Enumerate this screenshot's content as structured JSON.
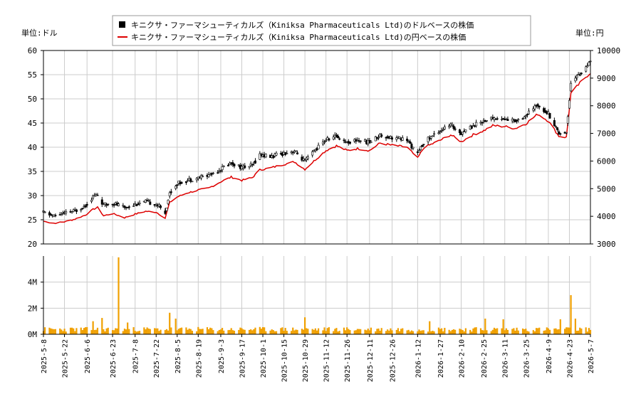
{
  "legend": {
    "items": [
      {
        "label": "キニクサ・ファーマシューティカルズ（Kiniksa Pharmaceuticals Ltd)のドルベースの株価",
        "color": "#000000",
        "kind": "box"
      },
      {
        "label": "キニクサ・ファーマシューティカルズ（Kiniksa Pharmaceuticals Ltd)の円ベースの株価",
        "color": "#dd0000",
        "kind": "line"
      }
    ]
  },
  "units": {
    "left": "単位:ドル",
    "right": "単位:円"
  },
  "colors": {
    "candle": "#000000",
    "yen_line": "#dd0000",
    "volume": "#f0a000",
    "grid": "#cccccc"
  },
  "chart_data": [
    {
      "type": "candlestick",
      "title": "",
      "xlabel": "",
      "ylabel": "単位:ドル",
      "y2label": "単位:円",
      "ylim": [
        20,
        60
      ],
      "y2lim": [
        3000,
        10000
      ],
      "yticks": [
        20,
        25,
        30,
        35,
        40,
        45,
        50,
        55,
        60
      ],
      "y2ticks": [
        3000,
        4000,
        5000,
        6000,
        7000,
        8000,
        9000,
        10000
      ],
      "grid": true,
      "legend": "top-center",
      "anchors_usd": [
        [
          "2025-05-08",
          26.5
        ],
        [
          "2025-05-15",
          25.8
        ],
        [
          "2025-05-22",
          26.3
        ],
        [
          "2025-05-29",
          26.8
        ],
        [
          "2025-06-05",
          28.0
        ],
        [
          "2025-06-10",
          29.8
        ],
        [
          "2025-06-13",
          30.2
        ],
        [
          "2025-06-17",
          28.0
        ],
        [
          "2025-06-23",
          28.5
        ],
        [
          "2025-07-01",
          27.5
        ],
        [
          "2025-07-08",
          28.2
        ],
        [
          "2025-07-15",
          28.7
        ],
        [
          "2025-07-22",
          28.3
        ],
        [
          "2025-07-28",
          26.5
        ],
        [
          "2025-07-31",
          30.5
        ],
        [
          "2025-08-05",
          32.5
        ],
        [
          "2025-08-12",
          33.2
        ],
        [
          "2025-08-19",
          33.7
        ],
        [
          "2025-08-26",
          34.2
        ],
        [
          "2025-09-03",
          35.5
        ],
        [
          "2025-09-10",
          36.8
        ],
        [
          "2025-09-17",
          35.8
        ],
        [
          "2025-09-24",
          36.2
        ],
        [
          "2025-09-29",
          38.5
        ],
        [
          "2025-10-06",
          38.0
        ],
        [
          "2025-10-15",
          38.8
        ],
        [
          "2025-10-22",
          39.2
        ],
        [
          "2025-10-29",
          37.0
        ],
        [
          "2025-11-05",
          39.5
        ],
        [
          "2025-11-12",
          41.5
        ],
        [
          "2025-11-19",
          42.3
        ],
        [
          "2025-11-26",
          41.0
        ],
        [
          "2025-12-03",
          41.5
        ],
        [
          "2025-12-11",
          41.0
        ],
        [
          "2025-12-18",
          42.5
        ],
        [
          "2025-12-26",
          42.0
        ],
        [
          "2026-01-05",
          41.5
        ],
        [
          "2026-01-12",
          38.5
        ],
        [
          "2026-01-16",
          41.0
        ],
        [
          "2026-01-27",
          43.5
        ],
        [
          "2026-02-03",
          44.5
        ],
        [
          "2026-02-10",
          43.0
        ],
        [
          "2026-02-18",
          44.5
        ],
        [
          "2026-02-25",
          45.5
        ],
        [
          "2026-03-03",
          46.0
        ],
        [
          "2026-03-11",
          45.8
        ],
        [
          "2026-03-18",
          45.5
        ],
        [
          "2026-03-25",
          46.5
        ],
        [
          "2026-04-02",
          48.8
        ],
        [
          "2026-04-09",
          47.0
        ],
        [
          "2026-04-16",
          43.0
        ],
        [
          "2026-04-21",
          43.0
        ],
        [
          "2026-04-24",
          53.5
        ],
        [
          "2026-05-01",
          55.5
        ],
        [
          "2026-05-07",
          57.5
        ]
      ],
      "anchors_jpy": [
        [
          "2025-05-08",
          3820
        ],
        [
          "2025-05-15",
          3750
        ],
        [
          "2025-05-22",
          3800
        ],
        [
          "2025-05-29",
          3900
        ],
        [
          "2025-06-05",
          4050
        ],
        [
          "2025-06-10",
          4250
        ],
        [
          "2025-06-13",
          4320
        ],
        [
          "2025-06-17",
          4020
        ],
        [
          "2025-06-23",
          4100
        ],
        [
          "2025-07-01",
          3950
        ],
        [
          "2025-07-08",
          4080
        ],
        [
          "2025-07-15",
          4180
        ],
        [
          "2025-07-22",
          4150
        ],
        [
          "2025-07-28",
          3930
        ],
        [
          "2025-07-31",
          4500
        ],
        [
          "2025-08-05",
          4700
        ],
        [
          "2025-08-12",
          4850
        ],
        [
          "2025-08-19",
          4950
        ],
        [
          "2025-08-26",
          5020
        ],
        [
          "2025-09-03",
          5250
        ],
        [
          "2025-09-10",
          5420
        ],
        [
          "2025-09-17",
          5300
        ],
        [
          "2025-09-24",
          5400
        ],
        [
          "2025-09-29",
          5680
        ],
        [
          "2025-10-06",
          5750
        ],
        [
          "2025-10-15",
          5880
        ],
        [
          "2025-10-22",
          5970
        ],
        [
          "2025-10-29",
          5700
        ],
        [
          "2025-11-05",
          6050
        ],
        [
          "2025-11-12",
          6380
        ],
        [
          "2025-11-19",
          6550
        ],
        [
          "2025-11-26",
          6380
        ],
        [
          "2025-12-03",
          6450
        ],
        [
          "2025-12-11",
          6380
        ],
        [
          "2025-12-18",
          6650
        ],
        [
          "2025-12-26",
          6570
        ],
        [
          "2026-01-05",
          6500
        ],
        [
          "2026-01-12",
          6100
        ],
        [
          "2026-01-16",
          6480
        ],
        [
          "2026-01-27",
          6750
        ],
        [
          "2026-02-03",
          6950
        ],
        [
          "2026-02-10",
          6700
        ],
        [
          "2026-02-18",
          6950
        ],
        [
          "2026-02-25",
          7100
        ],
        [
          "2026-03-03",
          7280
        ],
        [
          "2026-03-11",
          7250
        ],
        [
          "2026-03-18",
          7180
        ],
        [
          "2026-03-25",
          7350
        ],
        [
          "2026-04-02",
          7700
        ],
        [
          "2026-04-09",
          7450
        ],
        [
          "2026-04-16",
          6900
        ],
        [
          "2026-04-21",
          6860
        ],
        [
          "2026-04-24",
          8450
        ],
        [
          "2026-05-01",
          8880
        ],
        [
          "2026-05-07",
          9200
        ]
      ]
    },
    {
      "type": "bar",
      "title": "",
      "xlabel": "",
      "ylabel": "",
      "ylim": [
        0,
        6000000
      ],
      "yticks": [
        0,
        2000000,
        4000000
      ],
      "ytick_labels": [
        "0M",
        "2M",
        "4M"
      ],
      "base_volume": 400000,
      "spikes": [
        [
          "2025-06-10",
          1000000
        ],
        [
          "2025-06-16",
          1250000
        ],
        [
          "2025-06-27",
          5900000
        ],
        [
          "2025-07-03",
          900000
        ],
        [
          "2025-07-31",
          1650000
        ],
        [
          "2025-08-04",
          1200000
        ],
        [
          "2025-10-29",
          1300000
        ],
        [
          "2026-01-20",
          1000000
        ],
        [
          "2026-02-26",
          1200000
        ],
        [
          "2026-03-10",
          1150000
        ],
        [
          "2026-04-17",
          1150000
        ],
        [
          "2026-04-24",
          3000000
        ],
        [
          "2026-04-27",
          1200000
        ]
      ],
      "x_ticks": [
        "2025-5-8",
        "2025-5-22",
        "2025-6-6",
        "2025-6-23",
        "2025-7-8",
        "2025-7-22",
        "2025-8-5",
        "2025-8-19",
        "2025-9-3",
        "2025-9-17",
        "2025-10-1",
        "2025-10-15",
        "2025-10-29",
        "2025-11-12",
        "2025-11-26",
        "2025-12-11",
        "2025-12-26",
        "2026-1-12",
        "2026-1-27",
        "2026-2-10",
        "2026-2-25",
        "2026-3-11",
        "2026-3-25",
        "2026-4-9",
        "2026-4-23",
        "2026-5-7"
      ]
    }
  ]
}
